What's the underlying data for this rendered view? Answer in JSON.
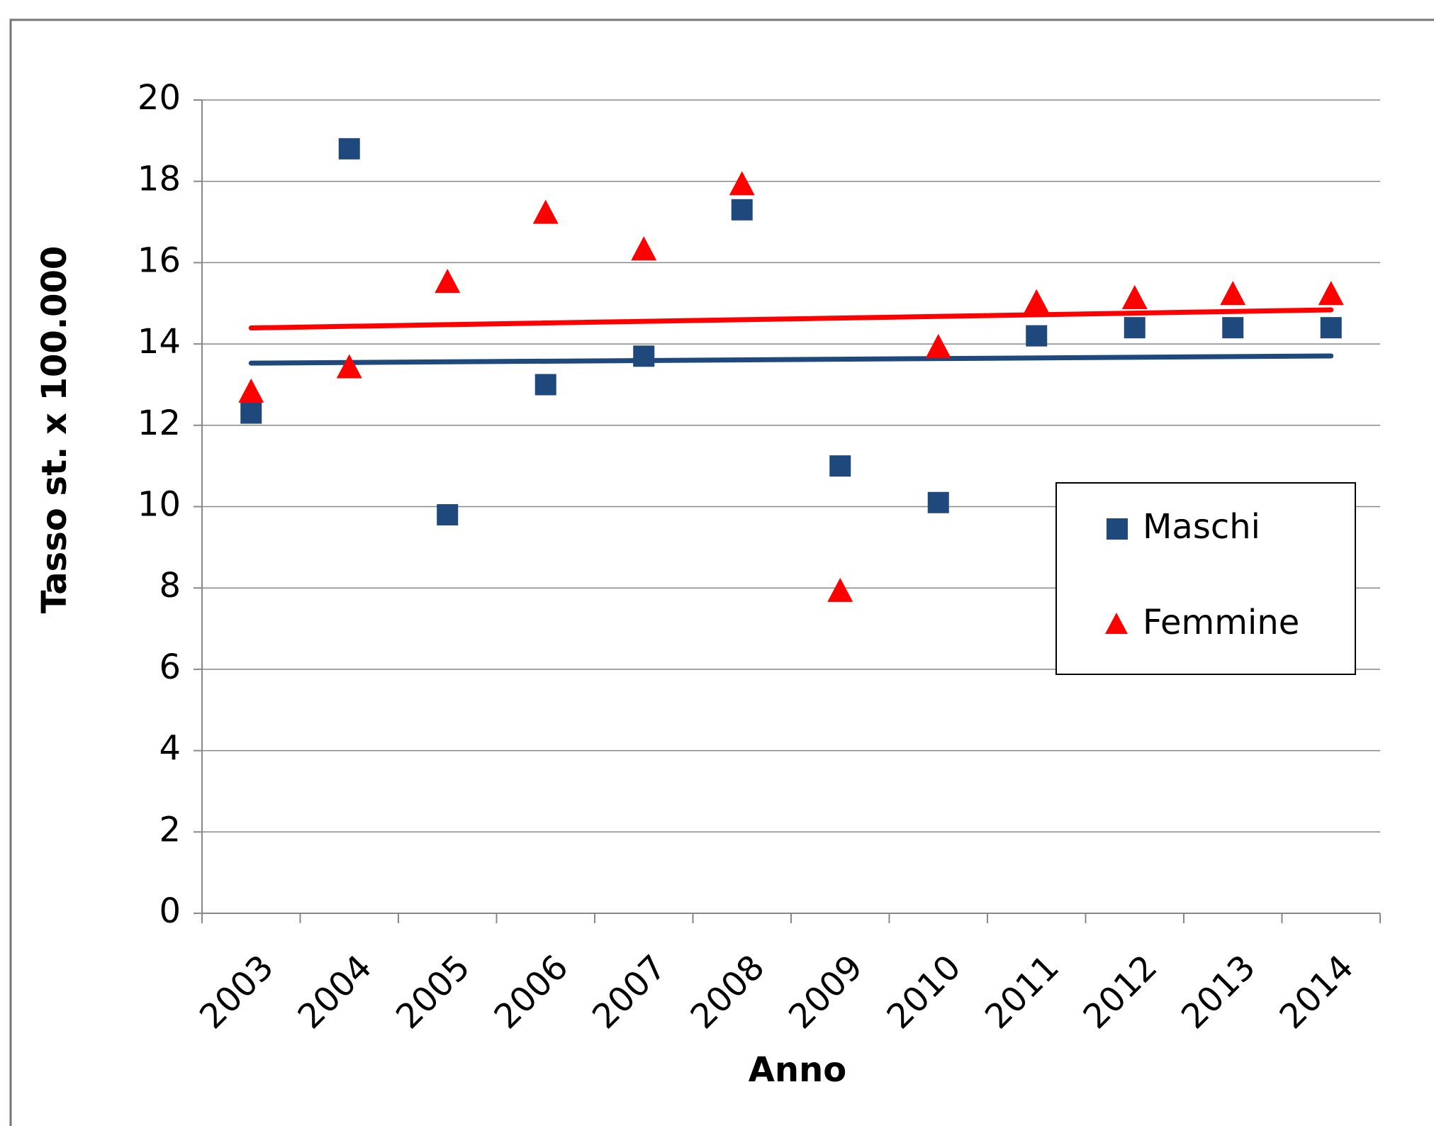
{
  "chart_data": {
    "type": "scatter",
    "x_label": "Anno",
    "y_label": "Tasso st. x 100.000",
    "categories": [
      "2003",
      "2004",
      "2005",
      "2006",
      "2007",
      "2008",
      "2009",
      "2010",
      "2011",
      "2012",
      "2013",
      "2014"
    ],
    "series": [
      {
        "name": "Maschi",
        "color": "#1f497d",
        "marker": "square",
        "trendline": true,
        "values": [
          12.3,
          18.8,
          9.8,
          13.0,
          13.7,
          17.3,
          11.0,
          10.1,
          14.2,
          14.4,
          14.4,
          14.4
        ]
      },
      {
        "name": "Femmine",
        "color": "#ff0000",
        "marker": "triangle",
        "trendline": true,
        "values": [
          12.8,
          13.4,
          15.5,
          17.2,
          16.3,
          17.9,
          7.9,
          13.9,
          15.0,
          15.1,
          15.2,
          15.2
        ]
      }
    ],
    "ylim": [
      0,
      20
    ],
    "yticks": [
      0,
      2,
      4,
      6,
      8,
      10,
      12,
      14,
      16,
      18,
      20
    ],
    "grid": true,
    "legend": "right"
  }
}
